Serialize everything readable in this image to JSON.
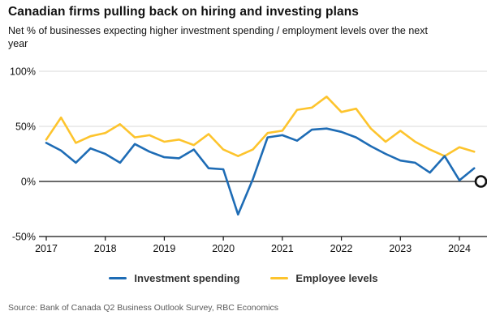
{
  "header": {
    "title": "Canadian firms pulling back on hiring and investing plans",
    "subtitle": "Net % of businesses expecting higher investment spending / employment levels over the next year"
  },
  "chart_data": {
    "type": "line",
    "title": "Canadian firms pulling back on hiring and investing plans",
    "subtitle": "Net % of businesses expecting higher investment spending / employment levels over the next year",
    "x": [
      "2017 Q1",
      "2017 Q2",
      "2017 Q3",
      "2017 Q4",
      "2018 Q1",
      "2018 Q2",
      "2018 Q3",
      "2018 Q4",
      "2019 Q1",
      "2019 Q2",
      "2019 Q3",
      "2019 Q4",
      "2020 Q1",
      "2020 Q2",
      "2020 Q3",
      "2020 Q4",
      "2021 Q1",
      "2021 Q2",
      "2021 Q3",
      "2021 Q4",
      "2022 Q1",
      "2022 Q2",
      "2022 Q3",
      "2022 Q4",
      "2023 Q1",
      "2023 Q2",
      "2023 Q3",
      "2023 Q4",
      "2024 Q1",
      "2024 Q2"
    ],
    "series": [
      {
        "name": "Investment spending",
        "color": "#1e6cb5",
        "values": [
          35,
          28,
          17,
          30,
          25,
          17,
          34,
          27,
          22,
          21,
          29,
          12,
          11,
          -30,
          2,
          40,
          42,
          37,
          47,
          48,
          45,
          40,
          32,
          25,
          19,
          17,
          8,
          23,
          1,
          12
        ]
      },
      {
        "name": "Employee levels",
        "color": "#fdc42d",
        "values": [
          38,
          58,
          35,
          41,
          44,
          52,
          40,
          42,
          36,
          38,
          33,
          43,
          29,
          23,
          29,
          44,
          46,
          65,
          67,
          77,
          63,
          66,
          48,
          36,
          46,
          36,
          29,
          23,
          31,
          27
        ]
      }
    ],
    "ylabel": "",
    "xlabel": "",
    "ylim": [
      -50,
      100
    ],
    "y_ticks": [
      {
        "label": "100%",
        "value": 100
      },
      {
        "label": "50%",
        "value": 50
      },
      {
        "label": "0%",
        "value": 0
      },
      {
        "label": "-50%",
        "value": -50
      }
    ],
    "x_ticks": [
      {
        "label": "2017",
        "index": 0
      },
      {
        "label": "2018",
        "index": 4
      },
      {
        "label": "2019",
        "index": 8
      },
      {
        "label": "2020",
        "index": 12
      },
      {
        "label": "2021",
        "index": 16
      },
      {
        "label": "2022",
        "index": 20
      },
      {
        "label": "2023",
        "index": 24
      },
      {
        "label": "2024",
        "index": 28
      }
    ],
    "grid": "horizontal",
    "legend_position": "bottom-center",
    "zero_line_end_marker": {
      "shape": "open-circle",
      "value": 0,
      "color": "#111111"
    }
  },
  "source": "Source: Bank of Canada Q2 Business Outlook Survey, RBC Economics"
}
